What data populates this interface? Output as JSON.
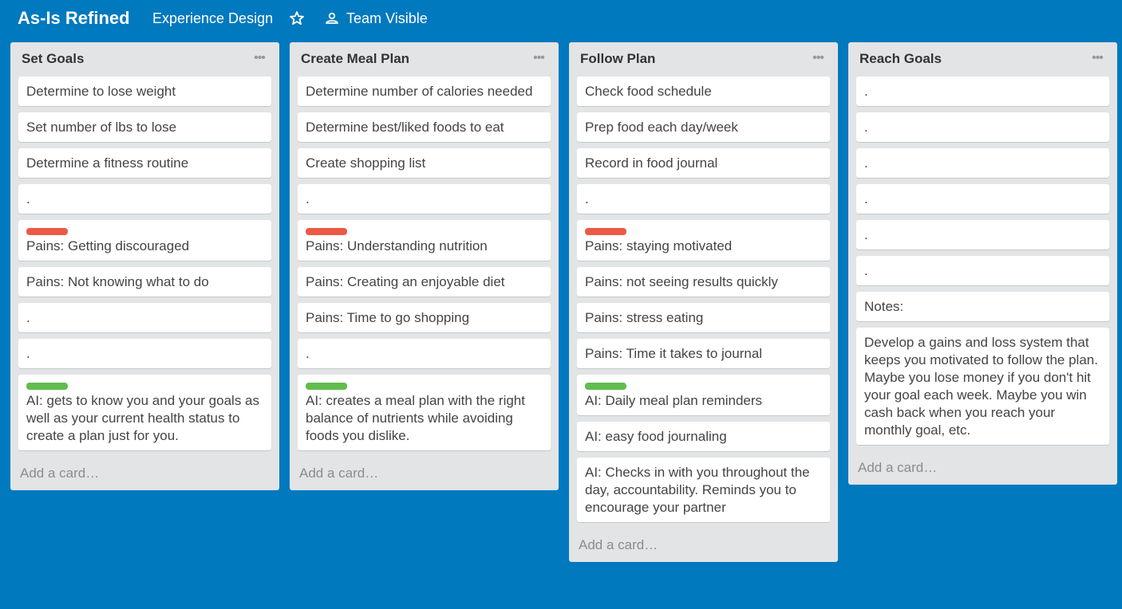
{
  "header": {
    "board_title": "As-Is Refined",
    "team": "Experience Design",
    "visibility": "Team Visible"
  },
  "lists": [
    {
      "title": "Set Goals",
      "cards": [
        {
          "label": null,
          "text": "Determine to lose weight"
        },
        {
          "label": null,
          "text": "Set number of lbs to lose"
        },
        {
          "label": null,
          "text": "Determine a fitness routine"
        },
        {
          "label": null,
          "text": "."
        },
        {
          "label": "red",
          "text": "Pains: Getting discouraged"
        },
        {
          "label": null,
          "text": "Pains: Not knowing what to do"
        },
        {
          "label": null,
          "text": "."
        },
        {
          "label": null,
          "text": "."
        },
        {
          "label": "green",
          "text": "AI: gets to know you and your goals as well as your current health status to create a plan just for you."
        }
      ],
      "add_card": "Add a card…"
    },
    {
      "title": "Create Meal Plan",
      "cards": [
        {
          "label": null,
          "text": "Determine number of calories needed"
        },
        {
          "label": null,
          "text": "Determine best/liked foods to eat"
        },
        {
          "label": null,
          "text": "Create shopping list"
        },
        {
          "label": null,
          "text": "."
        },
        {
          "label": "red",
          "text": "Pains: Understanding nutrition"
        },
        {
          "label": null,
          "text": "Pains: Creating an enjoyable diet"
        },
        {
          "label": null,
          "text": "Pains: Time to go shopping"
        },
        {
          "label": null,
          "text": "."
        },
        {
          "label": "green",
          "text": "AI: creates a meal plan with the right balance of nutrients while avoiding foods you dislike."
        }
      ],
      "add_card": "Add a card…"
    },
    {
      "title": "Follow Plan",
      "cards": [
        {
          "label": null,
          "text": "Check food schedule"
        },
        {
          "label": null,
          "text": "Prep food each day/week"
        },
        {
          "label": null,
          "text": "Record in food journal"
        },
        {
          "label": null,
          "text": "."
        },
        {
          "label": "red",
          "text": "Pains: staying motivated"
        },
        {
          "label": null,
          "text": "Pains: not seeing results quickly"
        },
        {
          "label": null,
          "text": "Pains: stress eating"
        },
        {
          "label": null,
          "text": "Pains: Time it takes to journal"
        },
        {
          "label": "green",
          "text": "AI: Daily meal plan reminders"
        },
        {
          "label": null,
          "text": "AI: easy food journaling"
        },
        {
          "label": null,
          "text": "AI: Checks in with you throughout the day, accountability. Reminds you to encourage your partner"
        }
      ],
      "add_card": "Add a card…"
    },
    {
      "title": "Reach Goals",
      "cards": [
        {
          "label": null,
          "text": "."
        },
        {
          "label": null,
          "text": "."
        },
        {
          "label": null,
          "text": "."
        },
        {
          "label": null,
          "text": "."
        },
        {
          "label": null,
          "text": "."
        },
        {
          "label": null,
          "text": "."
        },
        {
          "label": null,
          "text": "Notes:"
        },
        {
          "label": null,
          "text": "Develop a gains and loss system that keeps you motivated to follow the plan. Maybe you lose money if you don't hit your goal each week. Maybe you win cash back when you reach your monthly goal, etc."
        }
      ],
      "add_card": "Add a card…"
    }
  ],
  "colors": {
    "board_bg": "#0079bf",
    "list_bg": "#e2e4e6",
    "label_red": "#eb5a46",
    "label_green": "#61bd4f"
  },
  "icons": {
    "star": "star-icon",
    "visibility": "team-icon",
    "list_menu": "more-horizontal-icon"
  }
}
